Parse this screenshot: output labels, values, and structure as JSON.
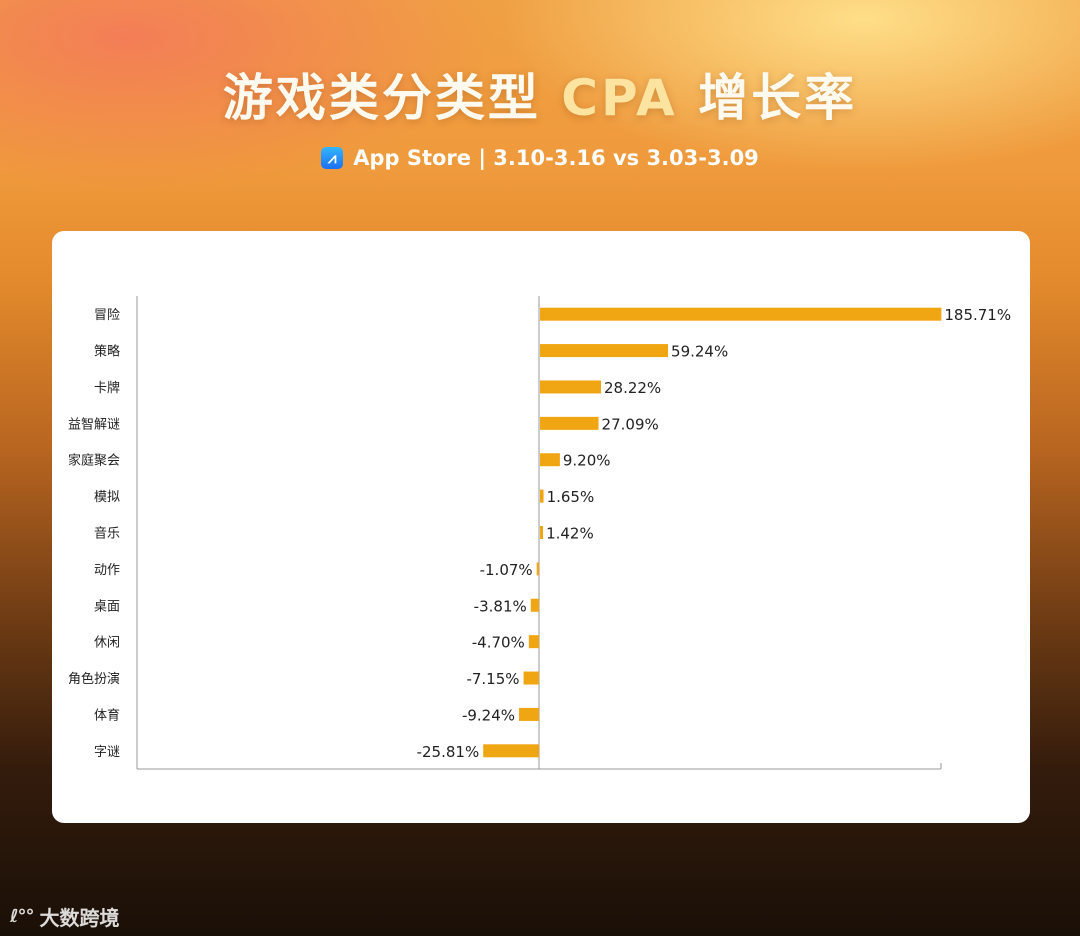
{
  "header": {
    "title_main": "游戏类分类型",
    "title_highlight": "CPA",
    "title_end": "增长率",
    "subtitle": "App Store | 3.10-3.16 vs 3.03-3.09",
    "store_icon": "app-store-icon"
  },
  "brand": {
    "logo_icon": "brand-logo-icon",
    "name": "大数跨境"
  },
  "colors": {
    "bar": "#f0a512",
    "axis": "#9a9a9a",
    "text": "#222222"
  },
  "chart_data": {
    "type": "bar",
    "orientation": "horizontal",
    "categories": [
      "冒险",
      "策略",
      "卡牌",
      "益智解谜",
      "家庭聚会",
      "模拟",
      "音乐",
      "动作",
      "桌面",
      "休闲",
      "角色扮演",
      "体育",
      "字谜"
    ],
    "values": [
      185.71,
      59.24,
      28.22,
      27.09,
      9.2,
      1.65,
      1.42,
      -1.07,
      -3.81,
      -4.7,
      -7.15,
      -9.24,
      -25.81
    ],
    "value_labels": [
      "185.71%",
      "59.24%",
      "28.22%",
      "27.09%",
      "9.20%",
      "1.65%",
      "1.42%",
      "-1.07%",
      "-3.81%",
      "-4.70%",
      "-7.15%",
      "-9.24%",
      "-25.81%"
    ],
    "unit": "%",
    "xlim": [
      -186,
      186
    ],
    "grid": false,
    "legend": "none"
  }
}
